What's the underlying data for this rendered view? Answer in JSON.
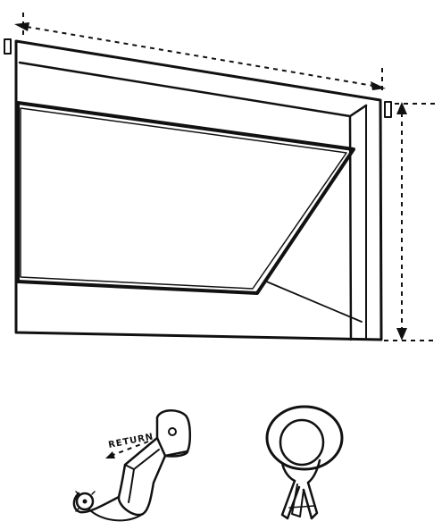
{
  "diagram": {
    "return_label": "RETURN",
    "parts": [
      {
        "icon": "window-frame-icon"
      },
      {
        "icon": "roman-shade-icon"
      },
      {
        "icon": "width-measure-arrow-icon"
      },
      {
        "icon": "drop-measure-arrow-icon"
      },
      {
        "icon": "curtain-rod-bracket-icon"
      },
      {
        "icon": "curtain-ring-clip-icon"
      }
    ],
    "ink_color": "#111111",
    "background_color": "#ffffff"
  }
}
